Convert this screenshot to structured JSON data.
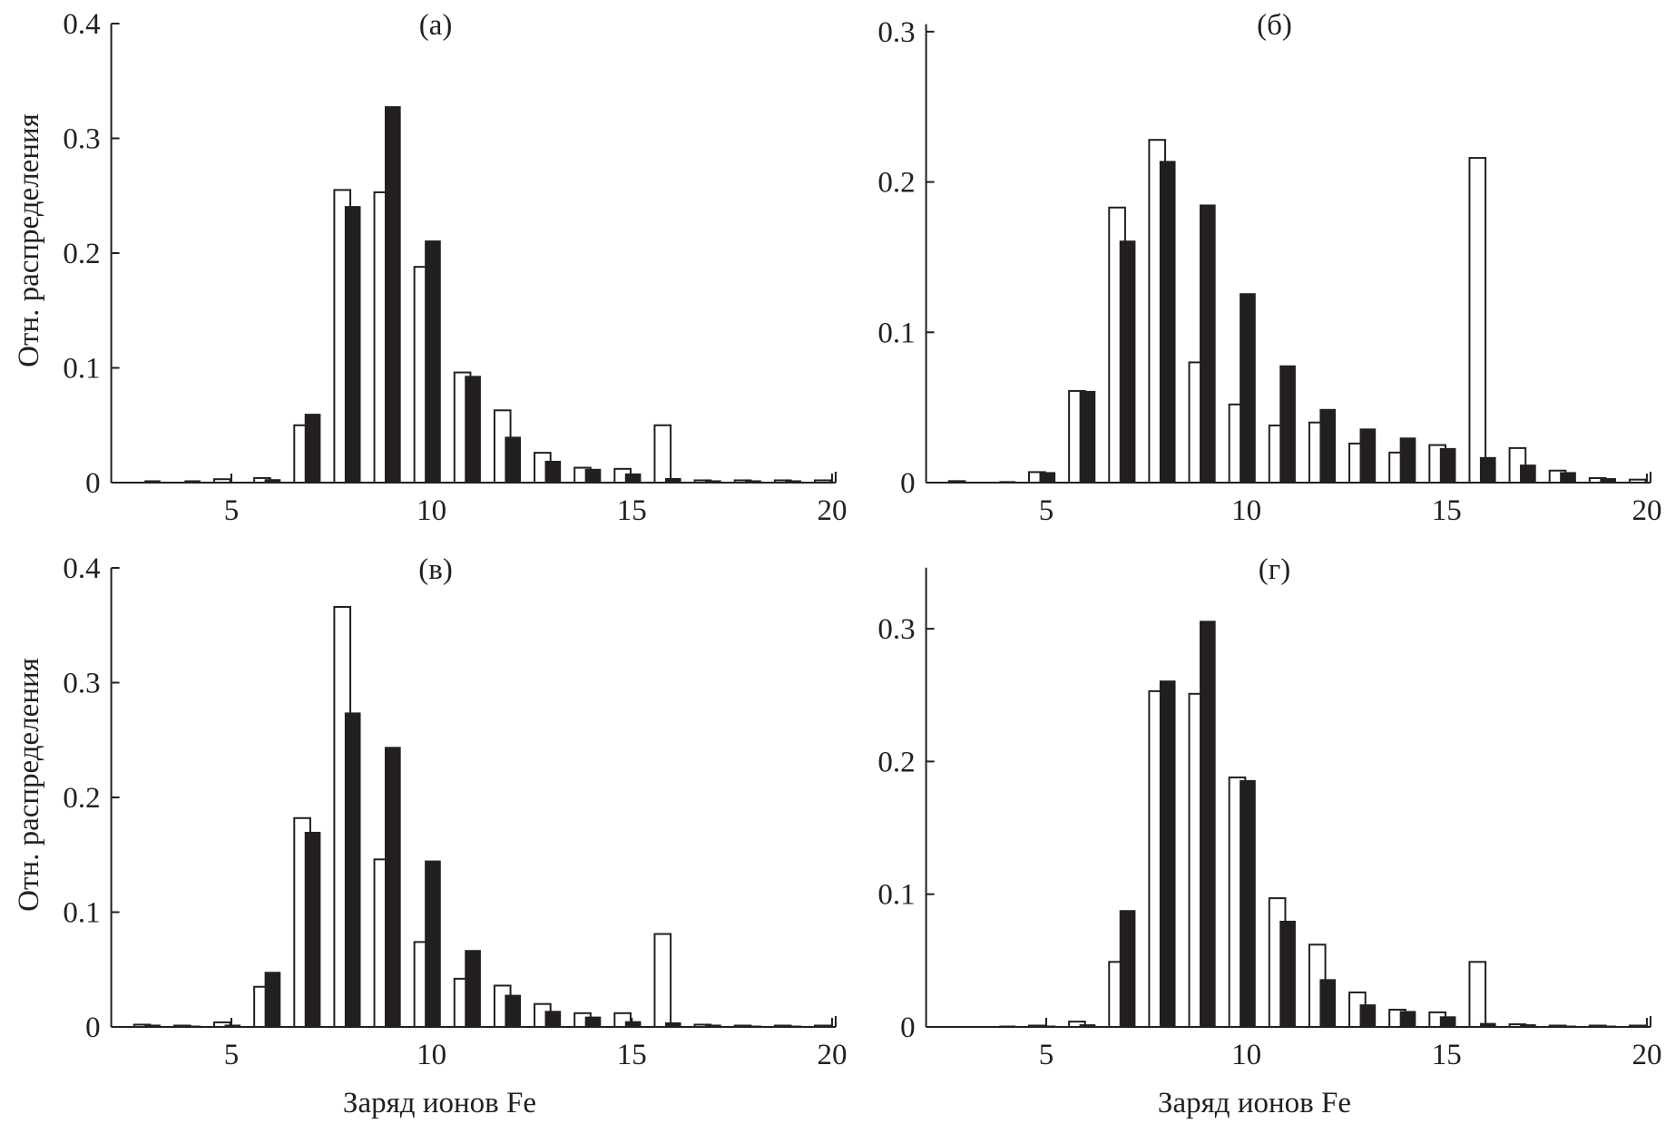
{
  "colors": {
    "white_bar_fill": "#ffffff",
    "black_bar_fill": "#231f20",
    "axis": "#231f20"
  },
  "labels": {
    "ylabel": "Отн. распределения",
    "xlabel": "Заряд ионов Fe"
  },
  "chart_data": [
    {
      "type": "bar",
      "title": "(а)",
      "xlabel": "",
      "ylabel": "Отн. распределения",
      "xlim": [
        2,
        20
      ],
      "ylim": [
        0,
        0.4
      ],
      "xticks": [
        "5",
        "10",
        "15",
        "20"
      ],
      "yticks": [
        "0",
        "0.1",
        "0.2",
        "0.3",
        "0.4"
      ],
      "grid": false,
      "categories": [
        3,
        4,
        5,
        6,
        7,
        8,
        9,
        10,
        11,
        12,
        13,
        14,
        15,
        16,
        17,
        18,
        19,
        20
      ],
      "series": [
        {
          "style": "open",
          "values": [
            0,
            0,
            0.003,
            0.004,
            0.05,
            0.255,
            0.253,
            0.188,
            0.096,
            0.063,
            0.026,
            0.013,
            0.012,
            0.05,
            0.002,
            0.002,
            0.002,
            0.002
          ]
        },
        {
          "style": "filled",
          "values": [
            0.002,
            0.002,
            0,
            0.003,
            0.06,
            0.241,
            0.328,
            0.211,
            0.093,
            0.04,
            0.019,
            0.012,
            0.008,
            0.004,
            0.002,
            0.002,
            0.002,
            0
          ]
        }
      ]
    },
    {
      "type": "bar",
      "title": "(б)",
      "xlabel": "",
      "ylabel": "",
      "xlim": [
        2,
        20
      ],
      "ylim": [
        0,
        0.305
      ],
      "xticks": [
        "5",
        "10",
        "15",
        "20"
      ],
      "yticks": [
        "0",
        "0.1",
        "0.2",
        "0.3"
      ],
      "grid": false,
      "categories": [
        3,
        4,
        5,
        6,
        7,
        8,
        9,
        10,
        11,
        12,
        13,
        14,
        15,
        16,
        17,
        18,
        19,
        20
      ],
      "series": [
        {
          "style": "open",
          "values": [
            0.001,
            0,
            0.007,
            0.061,
            0.183,
            0.228,
            0.08,
            0.052,
            0.038,
            0.04,
            0.026,
            0.02,
            0.025,
            0.216,
            0.023,
            0.008,
            0.003,
            0.002
          ]
        },
        {
          "style": "filled",
          "values": [
            0,
            0.001,
            0.007,
            0.061,
            0.161,
            0.214,
            0.185,
            0.126,
            0.078,
            0.049,
            0.036,
            0.03,
            0.023,
            0.017,
            0.012,
            0.007,
            0.003,
            0
          ]
        }
      ]
    },
    {
      "type": "bar",
      "title": "(в)",
      "xlabel": "Заряд ионов Fe",
      "ylabel": "Отн. распределения",
      "xlim": [
        2,
        20
      ],
      "ylim": [
        0,
        0.4
      ],
      "xticks": [
        "5",
        "10",
        "15",
        "20"
      ],
      "yticks": [
        "0",
        "0.1",
        "0.2",
        "0.3",
        "0.4"
      ],
      "grid": false,
      "categories": [
        3,
        4,
        5,
        6,
        7,
        8,
        9,
        10,
        11,
        12,
        13,
        14,
        15,
        16,
        17,
        18,
        19,
        20
      ],
      "series": [
        {
          "style": "open",
          "values": [
            0.002,
            0.001,
            0.004,
            0.035,
            0.182,
            0.366,
            0.146,
            0.074,
            0.042,
            0.036,
            0.02,
            0.012,
            0.012,
            0.081,
            0.002,
            0.001,
            0.001,
            0.001
          ]
        },
        {
          "style": "filled",
          "values": [
            0.002,
            0.001,
            0.002,
            0.048,
            0.17,
            0.274,
            0.244,
            0.145,
            0.067,
            0.028,
            0.014,
            0.009,
            0.005,
            0.004,
            0.002,
            0.001,
            0.001,
            0
          ]
        }
      ]
    },
    {
      "type": "bar",
      "title": "(г)",
      "xlabel": "Заряд ионов Fe",
      "ylabel": "",
      "xlim": [
        2,
        20
      ],
      "ylim": [
        0,
        0.346
      ],
      "xticks": [
        "5",
        "10",
        "15",
        "20"
      ],
      "yticks": [
        "0",
        "0.1",
        "0.2",
        "0.3"
      ],
      "grid": false,
      "categories": [
        3,
        4,
        5,
        6,
        7,
        8,
        9,
        10,
        11,
        12,
        13,
        14,
        15,
        16,
        17,
        18,
        19,
        20
      ],
      "series": [
        {
          "style": "open",
          "values": [
            0,
            0,
            0.001,
            0.004,
            0.049,
            0.253,
            0.251,
            0.188,
            0.097,
            0.062,
            0.026,
            0.013,
            0.011,
            0.049,
            0.002,
            0.001,
            0.001,
            0.001
          ]
        },
        {
          "style": "filled",
          "values": [
            0,
            0.001,
            0.001,
            0.002,
            0.088,
            0.261,
            0.306,
            0.186,
            0.08,
            0.036,
            0.017,
            0.012,
            0.008,
            0.003,
            0.002,
            0.001,
            0.001,
            0
          ]
        }
      ]
    }
  ]
}
